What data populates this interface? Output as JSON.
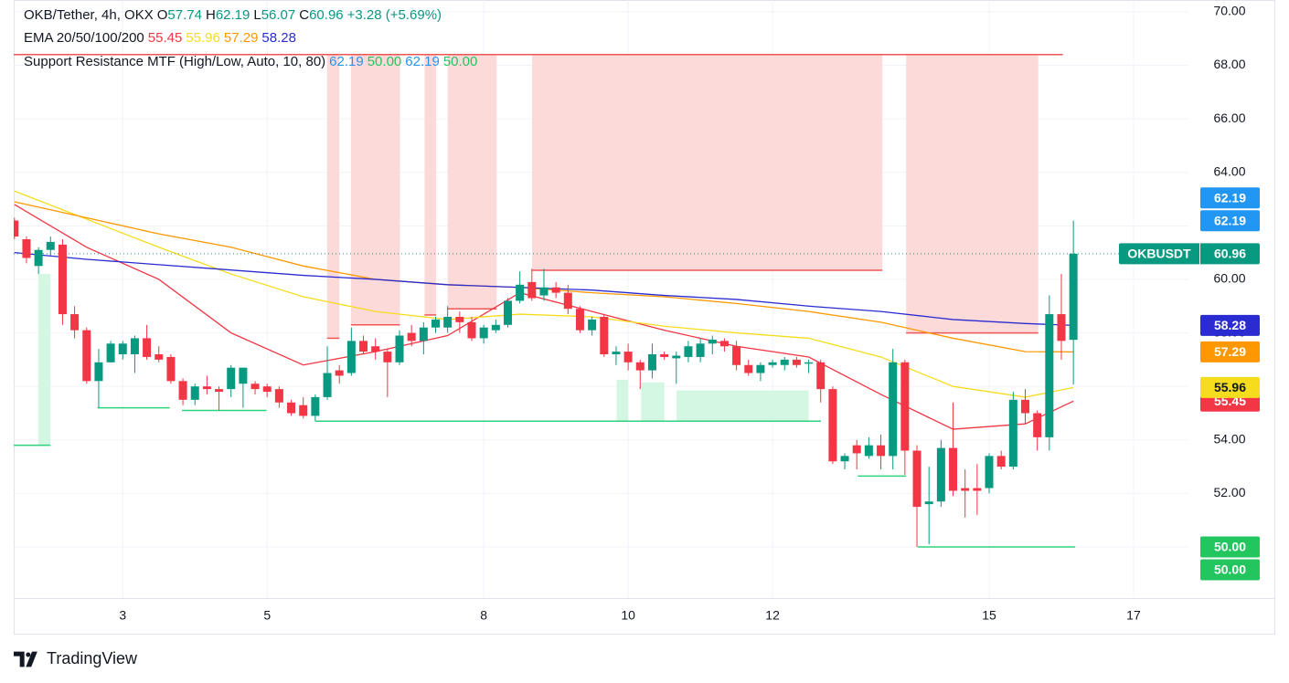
{
  "branding": "TradingView",
  "chart_data": {
    "type": "candlestick",
    "header": {
      "title": "OKB/Tether, 4h, OKX",
      "ohlc_labels": [
        "O",
        "H",
        "L",
        "C"
      ],
      "change": "+3.28 (+5.69%)"
    },
    "ema_legend": "EMA 20/50/100/200",
    "sr_legend": "Support Resistance MTF (High/Low, Auto, 10, 80)",
    "x": [
      1.5,
      1.6667,
      1.8333,
      2,
      2.1667,
      2.3333,
      2.5,
      2.6667,
      2.8333,
      3,
      3.1667,
      3.3333,
      3.5,
      3.6667,
      3.8333,
      4,
      4.1667,
      4.3333,
      4.5,
      4.6667,
      4.8333,
      5,
      5.1667,
      5.3333,
      5.5,
      5.6667,
      5.8333,
      6,
      6.1667,
      6.3333,
      6.5,
      6.6667,
      6.8333,
      7,
      7.1667,
      7.3333,
      7.5,
      7.6667,
      7.8333,
      8,
      8.1667,
      8.3333,
      8.5,
      8.6667,
      8.8333,
      9,
      9.1667,
      9.3333,
      9.5,
      9.6667,
      9.8333,
      10,
      10.1667,
      10.3333,
      10.5,
      10.6667,
      10.8333,
      11,
      11.1667,
      11.3333,
      11.5,
      11.6667,
      11.8333,
      12,
      12.1667,
      12.3333,
      12.5,
      12.6667,
      12.8333,
      13,
      13.1667,
      13.3333,
      13.5,
      13.6667,
      13.8333,
      14,
      14.1667,
      14.3333,
      14.5,
      14.6667,
      14.8333,
      15,
      15.1667,
      15.3333,
      15.5,
      15.6667,
      15.8333,
      16,
      16.1667
    ],
    "xlim": [
      1.49,
      17.76
    ],
    "xticks": [
      3,
      5,
      8,
      10,
      12,
      15,
      17
    ],
    "ylim": [
      48.09,
      70.44
    ],
    "yticks": [
      {
        "value": 50,
        "label": "50.00"
      },
      {
        "value": 52,
        "label": "52.00"
      },
      {
        "value": 54,
        "label": "54.00"
      },
      {
        "value": 56,
        "label": "56.00"
      },
      {
        "value": 58,
        "label": "58.00"
      },
      {
        "value": 60,
        "label": "60.00"
      },
      {
        "value": 62,
        "label": "62.00"
      },
      {
        "value": 64,
        "label": "64.00"
      },
      {
        "value": 66,
        "label": "66.00"
      },
      {
        "value": 68,
        "label": "68.00"
      },
      {
        "value": 70,
        "label": "70.00"
      }
    ],
    "grid": true,
    "series": [
      {
        "name": "OKBUSDT",
        "type": "candlestick",
        "up_color": "#089981",
        "down_color": "#f23645",
        "open": [
          62.2,
          61.5,
          60.5,
          61.1,
          61.3,
          58.7,
          58.1,
          56.2,
          56.9,
          57.2,
          57.2,
          57.8,
          57.2,
          57.1,
          56.2,
          55.5,
          56.0,
          55.9,
          55.9,
          56.1,
          56.1,
          56.0,
          55.9,
          55.4,
          55.3,
          54.9,
          55.6,
          56.6,
          56.5,
          57.7,
          57.5,
          57.3,
          56.9,
          58.0,
          57.7,
          58.2,
          58.2,
          58.6,
          58.4,
          57.8,
          58.1,
          58.3,
          59.2,
          59.9,
          59.4,
          59.7,
          59.5,
          58.9,
          58.1,
          58.6,
          57.2,
          57.3,
          56.9,
          56.6,
          57.2,
          57.05,
          57.1,
          57.1,
          57.6,
          57.7,
          57.5,
          56.8,
          56.5,
          56.8,
          56.8,
          57.0,
          56.85,
          56.9,
          55.9,
          53.2,
          53.8,
          53.4,
          53.8,
          53.4,
          56.9,
          53.6,
          51.6,
          51.7,
          53.7,
          52.2,
          52.2,
          52.2,
          53.4,
          53.0,
          55.5,
          55.0,
          54.1,
          58.7,
          57.74
        ],
        "high": [
          62.3,
          61.6,
          61.2,
          61.6,
          61.5,
          59.0,
          58.2,
          57.4,
          57.7,
          57.7,
          57.9,
          58.3,
          57.5,
          57.2,
          56.3,
          56.1,
          56.4,
          56.0,
          56.8,
          56.7,
          56.2,
          56.1,
          56.0,
          55.5,
          55.6,
          55.7,
          57.5,
          56.8,
          58.2,
          57.9,
          57.8,
          57.4,
          58.1,
          58.3,
          58.4,
          58.6,
          59.0,
          58.8,
          58.6,
          58.3,
          58.5,
          59.3,
          60.3,
          60.4,
          60.4,
          59.9,
          59.8,
          59.0,
          58.6,
          58.7,
          57.5,
          57.6,
          57.0,
          57.6,
          57.3,
          57.3,
          57.7,
          57.8,
          57.9,
          57.8,
          57.7,
          57.0,
          56.9,
          57.0,
          57.1,
          57.1,
          57.0,
          57.0,
          56.0,
          53.5,
          54.0,
          54.1,
          54.2,
          57.4,
          57.0,
          53.8,
          53.0,
          54.0,
          55.4,
          52.9,
          53.1,
          53.5,
          53.6,
          55.8,
          55.9,
          55.1,
          59.4,
          60.2,
          62.19
        ],
        "low": [
          61.5,
          60.6,
          60.2,
          60.9,
          58.3,
          57.8,
          56.1,
          55.2,
          56.9,
          57.0,
          56.5,
          57.0,
          56.9,
          56.1,
          55.3,
          55.3,
          55.7,
          55.1,
          55.6,
          55.2,
          55.7,
          55.6,
          55.2,
          54.9,
          54.8,
          54.7,
          55.5,
          56.1,
          56.4,
          57.2,
          57.0,
          55.6,
          56.8,
          57.5,
          57.2,
          58.0,
          58.0,
          58.0,
          57.7,
          57.6,
          58.0,
          58.2,
          59.1,
          59.2,
          59.2,
          59.3,
          58.7,
          58.0,
          57.9,
          57.1,
          56.8,
          56.6,
          55.9,
          56.3,
          57.0,
          56.1,
          56.9,
          56.9,
          57.2,
          57.3,
          56.6,
          56.4,
          56.2,
          56.7,
          56.6,
          56.7,
          56.5,
          55.4,
          53.1,
          52.9,
          52.9,
          53.3,
          52.9,
          52.9,
          52.7,
          50.0,
          50.1,
          51.5,
          51.9,
          51.1,
          51.2,
          52.0,
          52.9,
          52.9,
          54.6,
          53.6,
          53.6,
          57.0,
          56.07
        ],
        "close": [
          61.6,
          60.8,
          61.1,
          61.4,
          58.7,
          58.1,
          56.2,
          56.9,
          57.6,
          57.6,
          57.8,
          57.1,
          57.0,
          56.2,
          55.5,
          56.0,
          55.9,
          55.8,
          56.7,
          56.7,
          55.9,
          55.8,
          55.4,
          55.0,
          54.9,
          55.6,
          56.5,
          56.4,
          57.7,
          57.3,
          57.3,
          56.9,
          57.9,
          57.7,
          58.2,
          58.5,
          58.6,
          58.4,
          57.8,
          58.2,
          58.3,
          59.2,
          59.8,
          59.3,
          59.7,
          59.5,
          58.9,
          58.1,
          58.5,
          57.2,
          57.3,
          56.9,
          56.6,
          57.2,
          57.1,
          57.15,
          57.5,
          57.6,
          57.75,
          57.5,
          56.8,
          56.5,
          56.8,
          56.9,
          57.0,
          56.8,
          56.9,
          55.9,
          53.2,
          53.4,
          53.5,
          53.8,
          53.4,
          56.9,
          53.6,
          51.5,
          51.7,
          53.7,
          52.1,
          52.1,
          52.1,
          53.4,
          53.0,
          55.5,
          55.0,
          54.1,
          58.7,
          57.7,
          60.96
        ]
      },
      {
        "type": "line",
        "color": "#f23645",
        "x": [
          1.5,
          2.5,
          3.5,
          4.5,
          5.5,
          6.5,
          7.5,
          8.5,
          9.5,
          10.5,
          11.5,
          12.5,
          13.5,
          14.5,
          15.5,
          16.1667
        ],
        "values": [
          62.8,
          61.2,
          60.0,
          58.0,
          56.8,
          57.3,
          57.9,
          59.5,
          58.8,
          58.1,
          57.5,
          57.1,
          55.7,
          54.4,
          54.6,
          55.45
        ]
      },
      {
        "type": "line",
        "color": "#f5dd1e",
        "x": [
          1.5,
          2.5,
          3.5,
          4.5,
          5.5,
          6.5,
          7.5,
          8.5,
          9.5,
          10.5,
          11.5,
          12.5,
          13.5,
          14.5,
          15.5,
          16.1667
        ],
        "values": [
          63.3,
          62.25,
          61.2,
          60.2,
          59.35,
          58.8,
          58.5,
          58.7,
          58.6,
          58.25,
          58.0,
          57.8,
          57.1,
          56.0,
          55.6,
          55.96
        ]
      },
      {
        "type": "line",
        "color": "#ff9800",
        "x": [
          1.5,
          2.5,
          3.5,
          4.5,
          5.5,
          6.5,
          7.5,
          8.5,
          9.5,
          10.5,
          11.5,
          12.5,
          13.5,
          14.5,
          15.5,
          16.1667
        ],
        "values": [
          62.9,
          62.3,
          61.7,
          61.2,
          60.5,
          60.0,
          59.8,
          59.7,
          59.5,
          59.35,
          59.1,
          58.8,
          58.4,
          57.8,
          57.3,
          57.29
        ]
      },
      {
        "type": "line",
        "color": "#2a2bd1",
        "x": [
          1.5,
          2.5,
          3.5,
          4.5,
          5.5,
          6.5,
          7.5,
          8.5,
          9.5,
          10.5,
          11.5,
          12.5,
          13.5,
          14.5,
          15.5,
          16.1667
        ],
        "values": [
          61.0,
          60.75,
          60.55,
          60.35,
          60.15,
          60.0,
          59.8,
          59.7,
          59.6,
          59.4,
          59.25,
          59.0,
          58.8,
          58.5,
          58.35,
          58.28
        ]
      }
    ],
    "sr_levels": [
      {
        "value": 62.19,
        "label": "62.19",
        "color": "#2196f3"
      },
      {
        "value": 50,
        "label": "50.00",
        "color": "#22c55e"
      },
      {
        "value": 62.19,
        "label": "62.19",
        "color": "#2196f3"
      },
      {
        "value": 50,
        "label": "50.00",
        "color": "#22c55e"
      }
    ],
    "resistance": {
      "color": "#f05656",
      "fill": "#fddada",
      "line": {
        "x": [
          1.49,
          16.02
        ],
        "value": 68.4
      },
      "zones": [
        {
          "x": [
            5.83,
            6.0
          ],
          "y": [
            57.8,
            68.4
          ]
        },
        {
          "x": [
            6.16,
            6.84
          ],
          "y": [
            58.3,
            68.4
          ]
        },
        {
          "x": [
            7.18,
            7.34
          ],
          "y": [
            58.67,
            68.4
          ]
        },
        {
          "x": [
            7.5,
            8.18
          ],
          "y": [
            58.9,
            68.4
          ]
        },
        {
          "x": [
            8.67,
            13.52
          ],
          "y": [
            60.34,
            68.4
          ]
        },
        {
          "x": [
            13.85,
            15.68
          ],
          "y": [
            58.0,
            68.4
          ]
        }
      ]
    },
    "support": {
      "color": "#2fd27c",
      "fill": "#d3f7e3",
      "zones": [
        {
          "x": [
            1.83,
            2.0
          ],
          "y": [
            53.8,
            60.2
          ]
        },
        {
          "x": [
            9.84,
            10.0
          ],
          "y": [
            54.7,
            56.25
          ]
        },
        {
          "x": [
            10.18,
            10.5
          ],
          "y": [
            54.7,
            56.15
          ]
        },
        {
          "x": [
            10.67,
            12.5
          ],
          "y": [
            54.7,
            55.85
          ]
        }
      ],
      "lines": [
        {
          "x": [
            1.49,
            2.0
          ],
          "value": 53.8
        },
        {
          "x": [
            2.65,
            3.65
          ],
          "value": 55.2
        },
        {
          "x": [
            3.82,
            4.99
          ],
          "value": 55.1
        },
        {
          "x": [
            5.67,
            12.67
          ],
          "value": 54.7
        },
        {
          "x": [
            13.18,
            13.85
          ],
          "value": 52.65
        },
        {
          "x": [
            14.01,
            16.19
          ],
          "value": 50.0
        }
      ]
    }
  }
}
